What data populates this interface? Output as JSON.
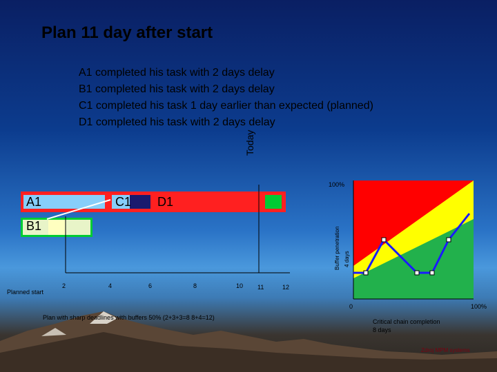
{
  "title": "Plan 11 day after start",
  "notes": [
    "A1 completed his task with 2 days delay",
    "B1 completed his task with 2 days delay",
    "C1 completed his task 1 day earlier than expected (planned)",
    "D1 completed his task with 2 days delay"
  ],
  "today_label": "Today",
  "bars": {
    "a1": "A1",
    "c1": "C1",
    "d1": "D1",
    "b1": "B1"
  },
  "timeline": {
    "start_label": "Planned start",
    "ticks": [
      "2",
      "4",
      "6",
      "8",
      "10",
      "11",
      "12"
    ]
  },
  "fever_chart": {
    "top_label": "100%",
    "y_axis_label": "Buffer penetration",
    "y_axis_sublabel": "4 days",
    "x_min_label": "0",
    "x_max_label": "100%",
    "x_axis_label_line1": "Critical chain completion",
    "x_axis_label_line2": "8 days",
    "zone_colors": {
      "red": "#ff0000",
      "yellow": "#ffff00",
      "green": "#22b14c"
    },
    "track_color": "#1a1aff"
  },
  "plan_note": "Plan with sharp deadlines with buffers 50% (2+3+3=8 8+4=12)",
  "source": "Zdroj MPM systems",
  "colors": {
    "project_bar": "#ff2020",
    "task_light_blue": "#87cefa",
    "task_green": "#00cc33",
    "task_light_yellow": "#ffffc0",
    "task_navy": "#1a1a6e"
  }
}
